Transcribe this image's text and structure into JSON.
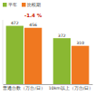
{
  "chart_data": {
    "type": "bar",
    "categories": [
      "普通台数（万台/日）",
      "10km以上（万台/日）"
    ],
    "series": [
      {
        "name": "平年",
        "color": "#8ab832",
        "values": [
          472,
          372
        ]
      },
      {
        "name": "比較期",
        "color": "#f07820",
        "values": [
          456,
          310
        ]
      }
    ],
    "ylim": [
      0,
      520
    ],
    "data_labels": true,
    "tick_labels": "x",
    "legend": "upper left",
    "grid": false,
    "annotations": [
      {
        "text": "-1.4 %",
        "color": "#cc2200"
      }
    ]
  }
}
